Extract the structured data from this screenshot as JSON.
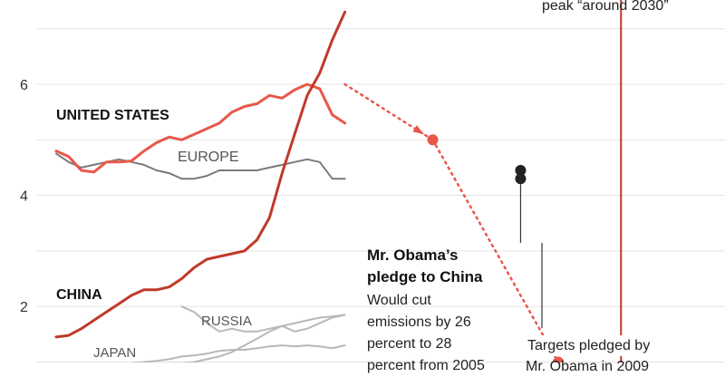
{
  "chart_data": {
    "type": "line",
    "title": "",
    "xlabel": "",
    "ylabel": "",
    "ylim": [
      1,
      7
    ],
    "y_ticks": [
      "6",
      "4",
      "2"
    ],
    "grid": true,
    "x": [
      1990,
      1991,
      1992,
      1993,
      1994,
      1995,
      1996,
      1997,
      1998,
      1999,
      2000,
      2001,
      2002,
      2003,
      2004,
      2005,
      2006,
      2007,
      2008,
      2009,
      2010,
      2011,
      2012,
      2013
    ],
    "series": [
      {
        "name": "UNITED STATES",
        "color": "#e8584a",
        "values": [
          4.8,
          4.7,
          4.45,
          4.42,
          4.6,
          4.6,
          4.62,
          4.8,
          4.95,
          5.05,
          5.0,
          5.1,
          5.2,
          5.3,
          5.5,
          5.6,
          5.65,
          5.8,
          5.75,
          5.9,
          6.0,
          5.92,
          5.45,
          5.3
        ]
      },
      {
        "name": "EUROPE",
        "color": "#7a7a7a",
        "values": [
          4.75,
          4.6,
          4.5,
          4.55,
          4.6,
          4.65,
          4.6,
          4.55,
          4.45,
          4.4,
          4.3,
          4.3,
          4.35,
          4.45,
          4.45,
          4.45,
          4.45,
          4.5,
          4.55,
          4.6,
          4.65,
          4.6,
          4.3,
          4.3
        ]
      },
      {
        "name": "CHINA",
        "color": "#c0392b",
        "values": [
          1.45,
          1.48,
          1.6,
          1.75,
          1.9,
          2.05,
          2.2,
          2.3,
          2.3,
          2.35,
          2.5,
          2.7,
          2.85,
          2.9,
          2.95,
          3.0,
          3.2,
          3.6,
          4.4,
          5.1,
          5.8,
          6.2,
          6.8,
          7.3
        ]
      },
      {
        "name": "RUSSIA",
        "color": "#b8b8b8",
        "values": [
          null,
          null,
          null,
          null,
          null,
          null,
          null,
          null,
          null,
          null,
          2.0,
          1.9,
          1.7,
          1.55,
          1.6,
          1.55,
          1.55,
          1.6,
          1.65,
          1.55,
          1.6,
          1.7,
          1.8,
          1.85
        ]
      },
      {
        "name": "JAPAN",
        "color": "#b8b8b8",
        "values": [
          null,
          null,
          null,
          null,
          null,
          null,
          0.98,
          1.0,
          1.02,
          1.05,
          1.1,
          1.12,
          1.15,
          1.2,
          1.22,
          1.22,
          1.25,
          1.28,
          1.3,
          1.28,
          1.3,
          1.28,
          1.25,
          1.3
        ]
      },
      {
        "name": "",
        "color": "#b8b8b8",
        "values": [
          null,
          null,
          null,
          null,
          null,
          null,
          null,
          null,
          null,
          0.98,
          0.98,
          1.0,
          1.05,
          1.1,
          1.18,
          1.3,
          1.42,
          1.55,
          1.65,
          1.7,
          1.75,
          1.8,
          1.82,
          1.85
        ]
      }
    ],
    "projections": [
      {
        "label": "us-pledge-2020",
        "x": [
          2013,
          2020
        ],
        "values": [
          6.0,
          5.0
        ],
        "color": "#e8584a",
        "dashed": true
      },
      {
        "label": "us-pledge-2025",
        "x": [
          2020,
          2030
        ],
        "values": [
          5.0,
          1.0
        ],
        "color": "#e8584a",
        "dashed": true
      }
    ],
    "points": [
      {
        "x": 2027,
        "value": 4.45,
        "color": "#222222"
      },
      {
        "x": 2027,
        "value": 4.3,
        "color": "#222222"
      }
    ],
    "reference_line": {
      "x": 2035,
      "color": "#c0392b"
    }
  },
  "labels": {
    "us": "UNITED STATES",
    "europe": "EUROPE",
    "china": "CHINA",
    "russia": "RUSSIA",
    "japan": "JAPAN"
  },
  "annotations": {
    "peak_text": "peak “around 2030”",
    "obama_title_1": "Mr. Obama’s",
    "obama_title_2": "pledge to China",
    "obama_body_1": "Would cut",
    "obama_body_2": "emissions by 26",
    "obama_body_3": "percent to 28",
    "obama_body_4": "percent from 2005",
    "targets_1": "Targets pledged by",
    "targets_2": "Mr. Obama in 2009"
  }
}
